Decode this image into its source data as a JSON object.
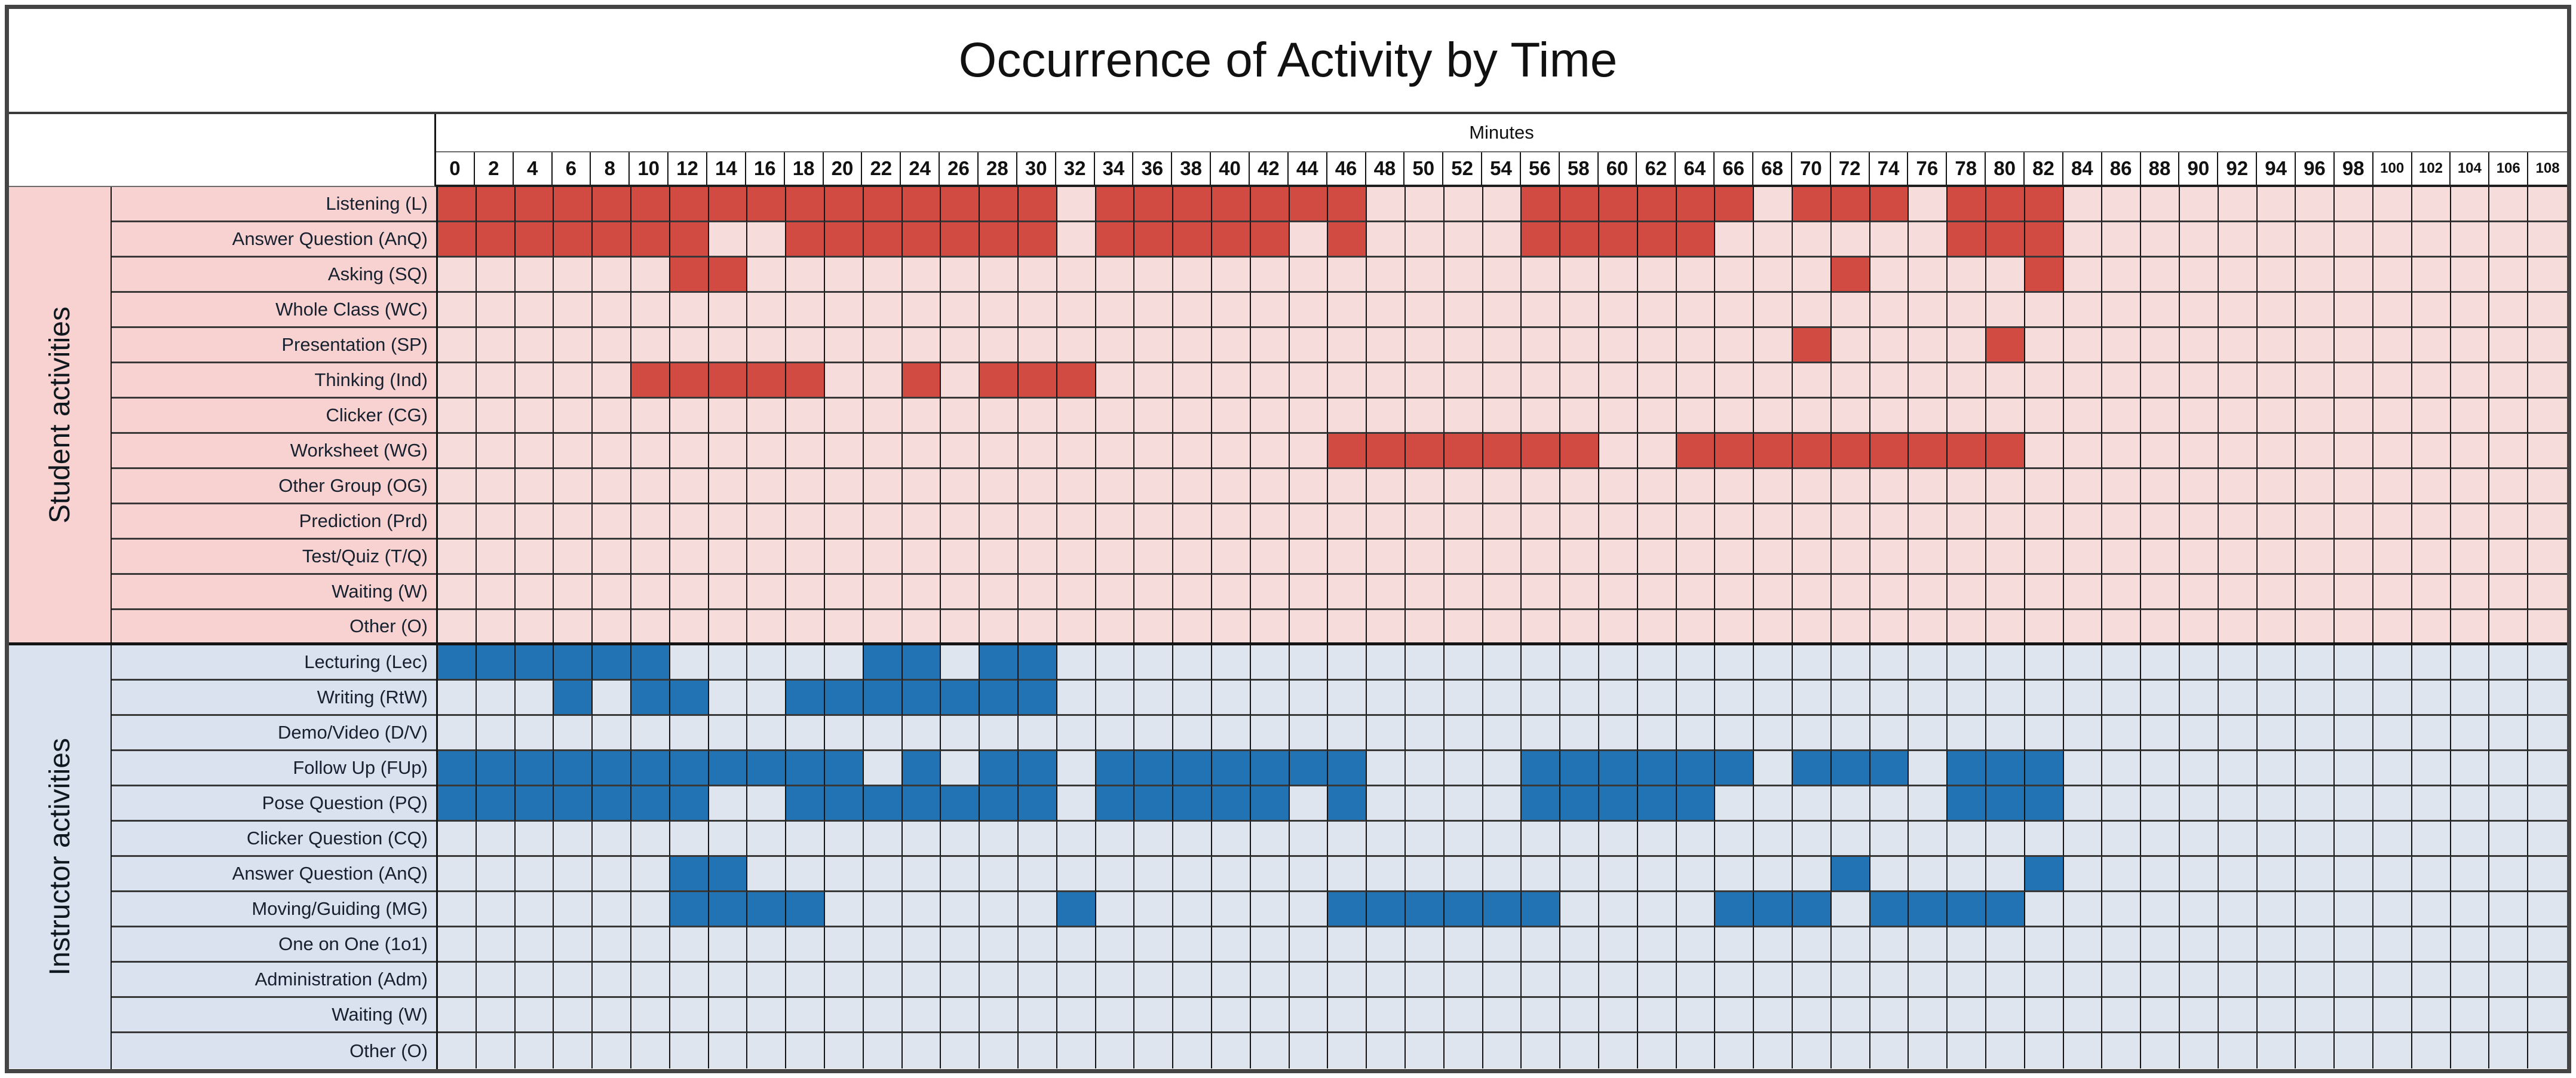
{
  "title": "Occurrence of Activity by Time",
  "colors": {
    "outer_border": "#454545",
    "grid_line": "#141414",
    "row_line": "#383838",
    "student_fill": "#d14b42",
    "student_empty": "#f6dddc",
    "student_band": "#f7d2d0",
    "instructor_fill": "#2273b4",
    "instructor_empty": "#dee5ef",
    "instructor_band": "#d9e2ee",
    "title_text": "#111111",
    "label_text": "#16202e"
  },
  "chart_data": {
    "type": "heatmap",
    "title": "Occurrence of Activity by Time",
    "x_label": "Minutes",
    "x_axis": {
      "start": 0,
      "end": 108,
      "step": 2
    },
    "x_ticks": [
      0,
      2,
      4,
      6,
      8,
      10,
      12,
      14,
      16,
      18,
      20,
      22,
      24,
      26,
      28,
      30,
      32,
      34,
      36,
      38,
      40,
      42,
      44,
      46,
      48,
      50,
      52,
      54,
      56,
      58,
      60,
      62,
      64,
      66,
      68,
      70,
      72,
      74,
      76,
      78,
      80,
      82,
      84,
      86,
      88,
      90,
      92,
      94,
      96,
      98,
      100,
      102,
      104,
      106,
      108
    ],
    "legend_position": "none",
    "grid": true,
    "sections": [
      {
        "name": "Student activities",
        "fill_color": "#d14b42",
        "empty_color": "#f6dddc",
        "band_color": "#f7d2d0",
        "rows": [
          {
            "label": "Listening (L)",
            "filled_minutes": [
              0,
              2,
              4,
              6,
              8,
              10,
              12,
              14,
              16,
              18,
              20,
              22,
              24,
              26,
              28,
              30,
              34,
              36,
              38,
              40,
              42,
              44,
              46,
              56,
              58,
              60,
              62,
              64,
              66,
              70,
              72,
              74,
              78,
              80,
              82
            ]
          },
          {
            "label": "Answer Question (AnQ)",
            "filled_minutes": [
              0,
              2,
              4,
              6,
              8,
              10,
              12,
              18,
              20,
              22,
              24,
              26,
              28,
              30,
              34,
              36,
              38,
              40,
              42,
              46,
              56,
              58,
              60,
              62,
              64,
              78,
              80,
              82
            ]
          },
          {
            "label": "Asking (SQ)",
            "filled_minutes": [
              12,
              14,
              72,
              82
            ]
          },
          {
            "label": "Whole Class (WC)",
            "filled_minutes": []
          },
          {
            "label": "Presentation (SP)",
            "filled_minutes": [
              70,
              80
            ]
          },
          {
            "label": "Thinking (Ind)",
            "filled_minutes": [
              10,
              12,
              14,
              16,
              18,
              24,
              28,
              30,
              32
            ]
          },
          {
            "label": "Clicker (CG)",
            "filled_minutes": []
          },
          {
            "label": "Worksheet (WG)",
            "filled_minutes": [
              46,
              48,
              50,
              52,
              54,
              56,
              58,
              64,
              66,
              68,
              70,
              72,
              74,
              76,
              78,
              80
            ]
          },
          {
            "label": "Other Group (OG)",
            "filled_minutes": []
          },
          {
            "label": "Prediction (Prd)",
            "filled_minutes": []
          },
          {
            "label": "Test/Quiz (T/Q)",
            "filled_minutes": []
          },
          {
            "label": "Waiting (W)",
            "filled_minutes": []
          },
          {
            "label": "Other (O)",
            "filled_minutes": []
          }
        ]
      },
      {
        "name": "Instructor activities",
        "fill_color": "#2273b4",
        "empty_color": "#dee5ef",
        "band_color": "#d9e2ee",
        "rows": [
          {
            "label": "Lecturing (Lec)",
            "filled_minutes": [
              0,
              2,
              4,
              6,
              8,
              10,
              22,
              24,
              28,
              30
            ]
          },
          {
            "label": "Writing (RtW)",
            "filled_minutes": [
              6,
              10,
              12,
              18,
              20,
              22,
              24,
              26,
              28,
              30
            ]
          },
          {
            "label": "Demo/Video (D/V)",
            "filled_minutes": []
          },
          {
            "label": "Follow Up (FUp)",
            "filled_minutes": [
              0,
              2,
              4,
              6,
              8,
              10,
              12,
              14,
              16,
              18,
              20,
              24,
              28,
              30,
              34,
              36,
              38,
              40,
              42,
              44,
              46,
              56,
              58,
              60,
              62,
              64,
              66,
              70,
              72,
              74,
              78,
              80,
              82
            ]
          },
          {
            "label": "Pose Question (PQ)",
            "filled_minutes": [
              0,
              2,
              4,
              6,
              8,
              10,
              12,
              18,
              20,
              22,
              24,
              26,
              28,
              30,
              34,
              36,
              38,
              40,
              42,
              46,
              56,
              58,
              60,
              62,
              64,
              78,
              80,
              82
            ]
          },
          {
            "label": "Clicker Question (CQ)",
            "filled_minutes": []
          },
          {
            "label": "Answer Question (AnQ)",
            "filled_minutes": [
              12,
              14,
              72,
              82
            ]
          },
          {
            "label": "Moving/Guiding (MG)",
            "filled_minutes": [
              12,
              14,
              16,
              18,
              32,
              46,
              48,
              50,
              52,
              54,
              56,
              66,
              68,
              70,
              74,
              76,
              78,
              80
            ]
          },
          {
            "label": "One on One (1o1)",
            "filled_minutes": []
          },
          {
            "label": "Administration (Adm)",
            "filled_minutes": []
          },
          {
            "label": "Waiting (W)",
            "filled_minutes": []
          },
          {
            "label": "Other (O)",
            "filled_minutes": []
          }
        ]
      }
    ]
  }
}
